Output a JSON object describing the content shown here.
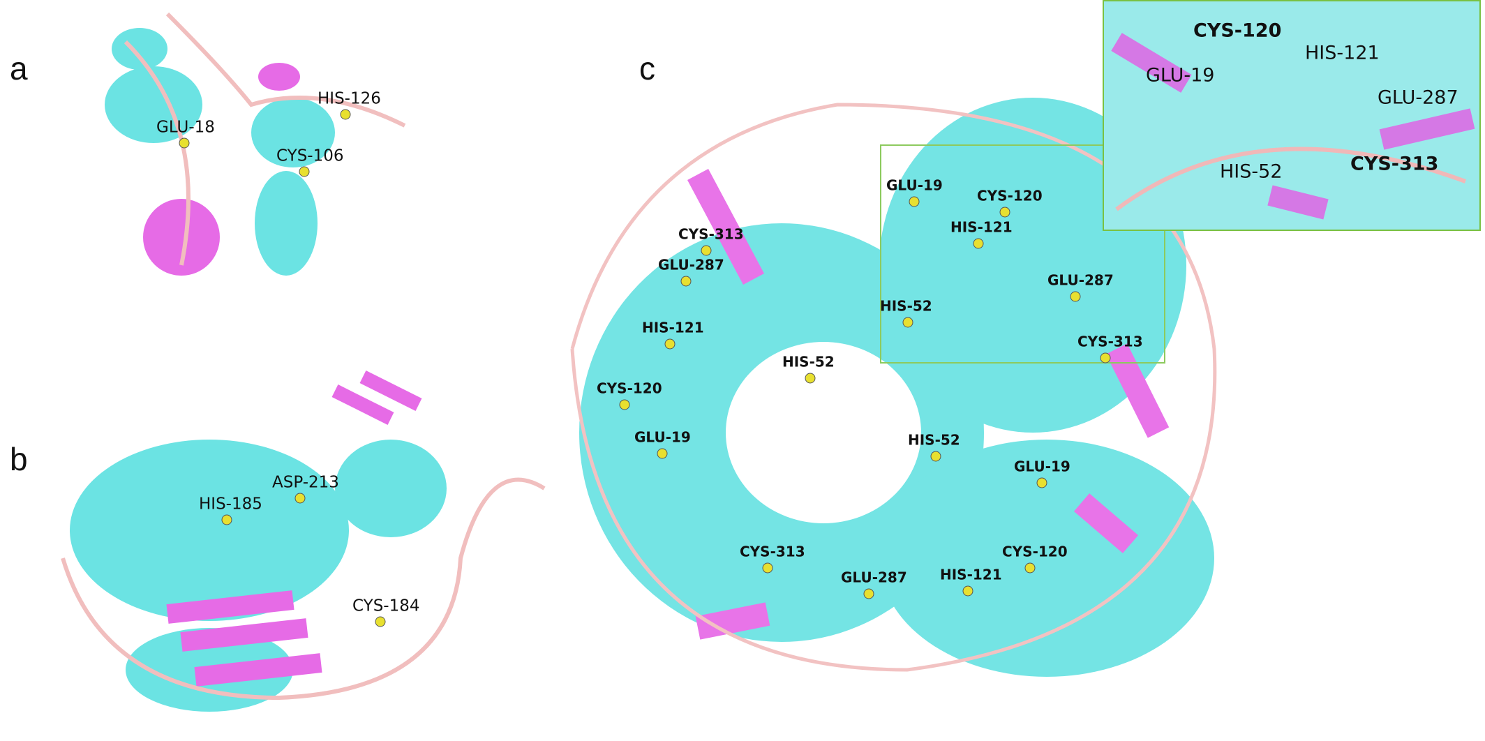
{
  "panels": [
    {
      "label": "a",
      "residues": [
        "GLU-18",
        "HIS-126",
        "CYS-106"
      ]
    },
    {
      "label": "b",
      "residues": [
        "HIS-185",
        "ASP-213",
        "CYS-184"
      ]
    },
    {
      "label": "c",
      "residues": [
        "CYS-313",
        "GLU-287",
        "HIS-121",
        "CYS-120",
        "HIS-52",
        "GLU-19",
        "GLU-19",
        "CYS-120",
        "HIS-121",
        "HIS-52",
        "GLU-287",
        "CYS-313",
        "HIS-52",
        "GLU-19",
        "CYS-313",
        "GLU-287",
        "HIS-121",
        "CYS-120"
      ],
      "inset_residues": [
        "CYS-120",
        "HIS-121",
        "GLU-19",
        "GLU-287",
        "HIS-52",
        "CYS-313"
      ]
    }
  ]
}
